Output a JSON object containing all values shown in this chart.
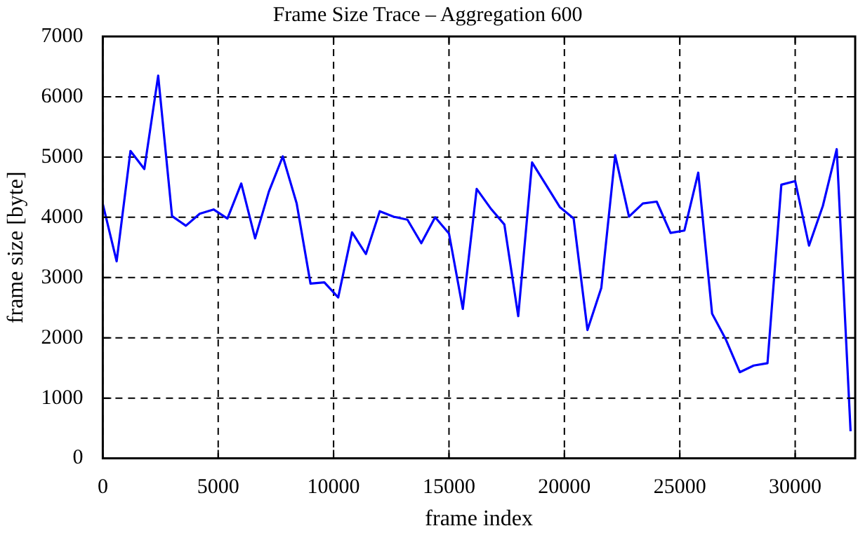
{
  "chart_data": {
    "type": "line",
    "title": "Frame Size Trace – Aggregation 600",
    "xlabel": "frame index",
    "ylabel": "frame size [byte]",
    "x": [
      0,
      600,
      1200,
      1800,
      2400,
      3000,
      3600,
      4200,
      4800,
      5400,
      6000,
      6600,
      7200,
      7800,
      8400,
      9000,
      9600,
      10200,
      10800,
      11400,
      12000,
      12600,
      13200,
      13800,
      14400,
      15000,
      15600,
      16200,
      16800,
      17400,
      18000,
      18600,
      19200,
      19800,
      20400,
      21000,
      21600,
      22200,
      22800,
      23400,
      24000,
      24600,
      25200,
      25800,
      26400,
      27000,
      27600,
      28200,
      28800,
      29400,
      30000,
      30600,
      31200,
      31800,
      32400
    ],
    "series": [
      {
        "color": "#0000ff",
        "values": [
          4220,
          3270,
          5100,
          4800,
          6350,
          4020,
          3860,
          4060,
          4130,
          3980,
          4560,
          3650,
          4430,
          5010,
          4230,
          2900,
          2920,
          2670,
          3750,
          3390,
          4100,
          4010,
          3960,
          3570,
          4000,
          3730,
          2480,
          4470,
          4150,
          3880,
          2360,
          4910,
          4540,
          4170,
          3980,
          2130,
          2830,
          5030,
          4010,
          4230,
          4260,
          3740,
          3780,
          4740,
          2400,
          1970,
          1430,
          1540,
          1580,
          4540,
          4600,
          3530,
          4190,
          5130,
          450
        ]
      }
    ],
    "xlim": [
      0,
      32600
    ],
    "xticks": [
      0,
      5000,
      10000,
      15000,
      20000,
      25000,
      30000
    ],
    "ylim": [
      0,
      7000
    ],
    "yticks": [
      0,
      1000,
      2000,
      3000,
      4000,
      5000,
      6000,
      7000
    ],
    "grid": true,
    "legend": false,
    "marker": "none",
    "line_style": "solid"
  }
}
